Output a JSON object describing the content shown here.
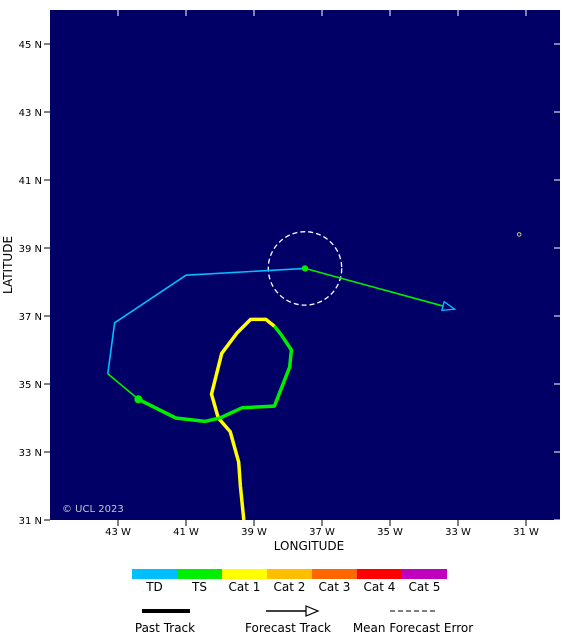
{
  "map": {
    "background_color": "#000066",
    "copyright": "© UCL 2023",
    "x_axis_title": "LONGITUDE",
    "y_axis_title": "LATITUDE",
    "lon_range": [
      -45,
      -30
    ],
    "lat_range": [
      31,
      46
    ],
    "lon_ticks": [
      {
        "value": -43,
        "label": "43 W"
      },
      {
        "value": -41,
        "label": "41 W"
      },
      {
        "value": -39,
        "label": "39 W"
      },
      {
        "value": -37,
        "label": "37 W"
      },
      {
        "value": -35,
        "label": "35 W"
      },
      {
        "value": -33,
        "label": "33 W"
      },
      {
        "value": -31,
        "label": "31 W"
      }
    ],
    "lat_ticks": [
      {
        "value": 45,
        "label": "45 N"
      },
      {
        "value": 43,
        "label": "43 N"
      },
      {
        "value": 41,
        "label": "41 N"
      },
      {
        "value": 39,
        "label": "39 N"
      },
      {
        "value": 37,
        "label": "37 N"
      },
      {
        "value": 35,
        "label": "35 N"
      },
      {
        "value": 33,
        "label": "33 N"
      },
      {
        "value": 31,
        "label": "31 N"
      }
    ]
  },
  "tracks": {
    "past_yellow": {
      "color": "#ffff00",
      "points": [
        [
          -39.3,
          31.0
        ],
        [
          -39.4,
          32.0
        ],
        [
          -39.45,
          32.7
        ],
        [
          -39.7,
          33.6
        ],
        [
          -40.05,
          34.0
        ],
        [
          -40.25,
          34.7
        ],
        [
          -40.1,
          35.3
        ],
        [
          -39.95,
          35.9
        ],
        [
          -39.5,
          36.5
        ],
        [
          -39.1,
          36.9
        ],
        [
          -38.65,
          36.9
        ],
        [
          -38.4,
          36.7
        ]
      ]
    },
    "past_green_loop": {
      "color": "#00ee00",
      "points": [
        [
          -38.4,
          36.7
        ],
        [
          -38.2,
          36.45
        ],
        [
          -37.9,
          36.0
        ],
        [
          -37.95,
          35.5
        ],
        [
          -38.4,
          34.35
        ],
        [
          -39.35,
          34.3
        ],
        [
          -40.0,
          34.0
        ],
        [
          -40.45,
          33.9
        ],
        [
          -41.3,
          34.0
        ],
        [
          -42.4,
          34.55
        ]
      ]
    },
    "past_green_tail": {
      "color": "#00ee00",
      "points": [
        [
          -42.4,
          34.55
        ],
        [
          -43.3,
          35.3
        ]
      ]
    },
    "past_cyan": {
      "color": "#00bfff",
      "points": [
        [
          -43.3,
          35.3
        ],
        [
          -43.1,
          36.8
        ],
        [
          -41.0,
          38.2
        ],
        [
          -37.5,
          38.4
        ]
      ]
    },
    "forecast": {
      "color": "#00ee00",
      "points": [
        [
          -37.5,
          38.4
        ],
        [
          -33.1,
          37.2
        ]
      ]
    },
    "forecast_arrow_color": "#00bfff",
    "current_position": [
      -37.5,
      38.4
    ],
    "green_dot": [
      -42.4,
      34.55
    ],
    "error_circle": {
      "center": [
        -37.5,
        38.4
      ],
      "radius_deg": 1.08,
      "color": "#ffffff"
    },
    "small_marker": {
      "position": [
        -31.2,
        39.4
      ],
      "color": "#c8c864"
    }
  },
  "legend": {
    "categories": [
      {
        "label": "TD",
        "color": "#00bfff"
      },
      {
        "label": "TS",
        "color": "#00ee00"
      },
      {
        "label": "Cat 1",
        "color": "#ffff00"
      },
      {
        "label": "Cat 2",
        "color": "#ffbf00"
      },
      {
        "label": "Cat 3",
        "color": "#ff6600"
      },
      {
        "label": "Cat 4",
        "color": "#ff0000"
      },
      {
        "label": "Cat 5",
        "color": "#bf00bf"
      }
    ],
    "past_track_label": "Past Track",
    "forecast_track_label": "Forecast Track",
    "mean_error_label": "Mean Forecast Error"
  }
}
